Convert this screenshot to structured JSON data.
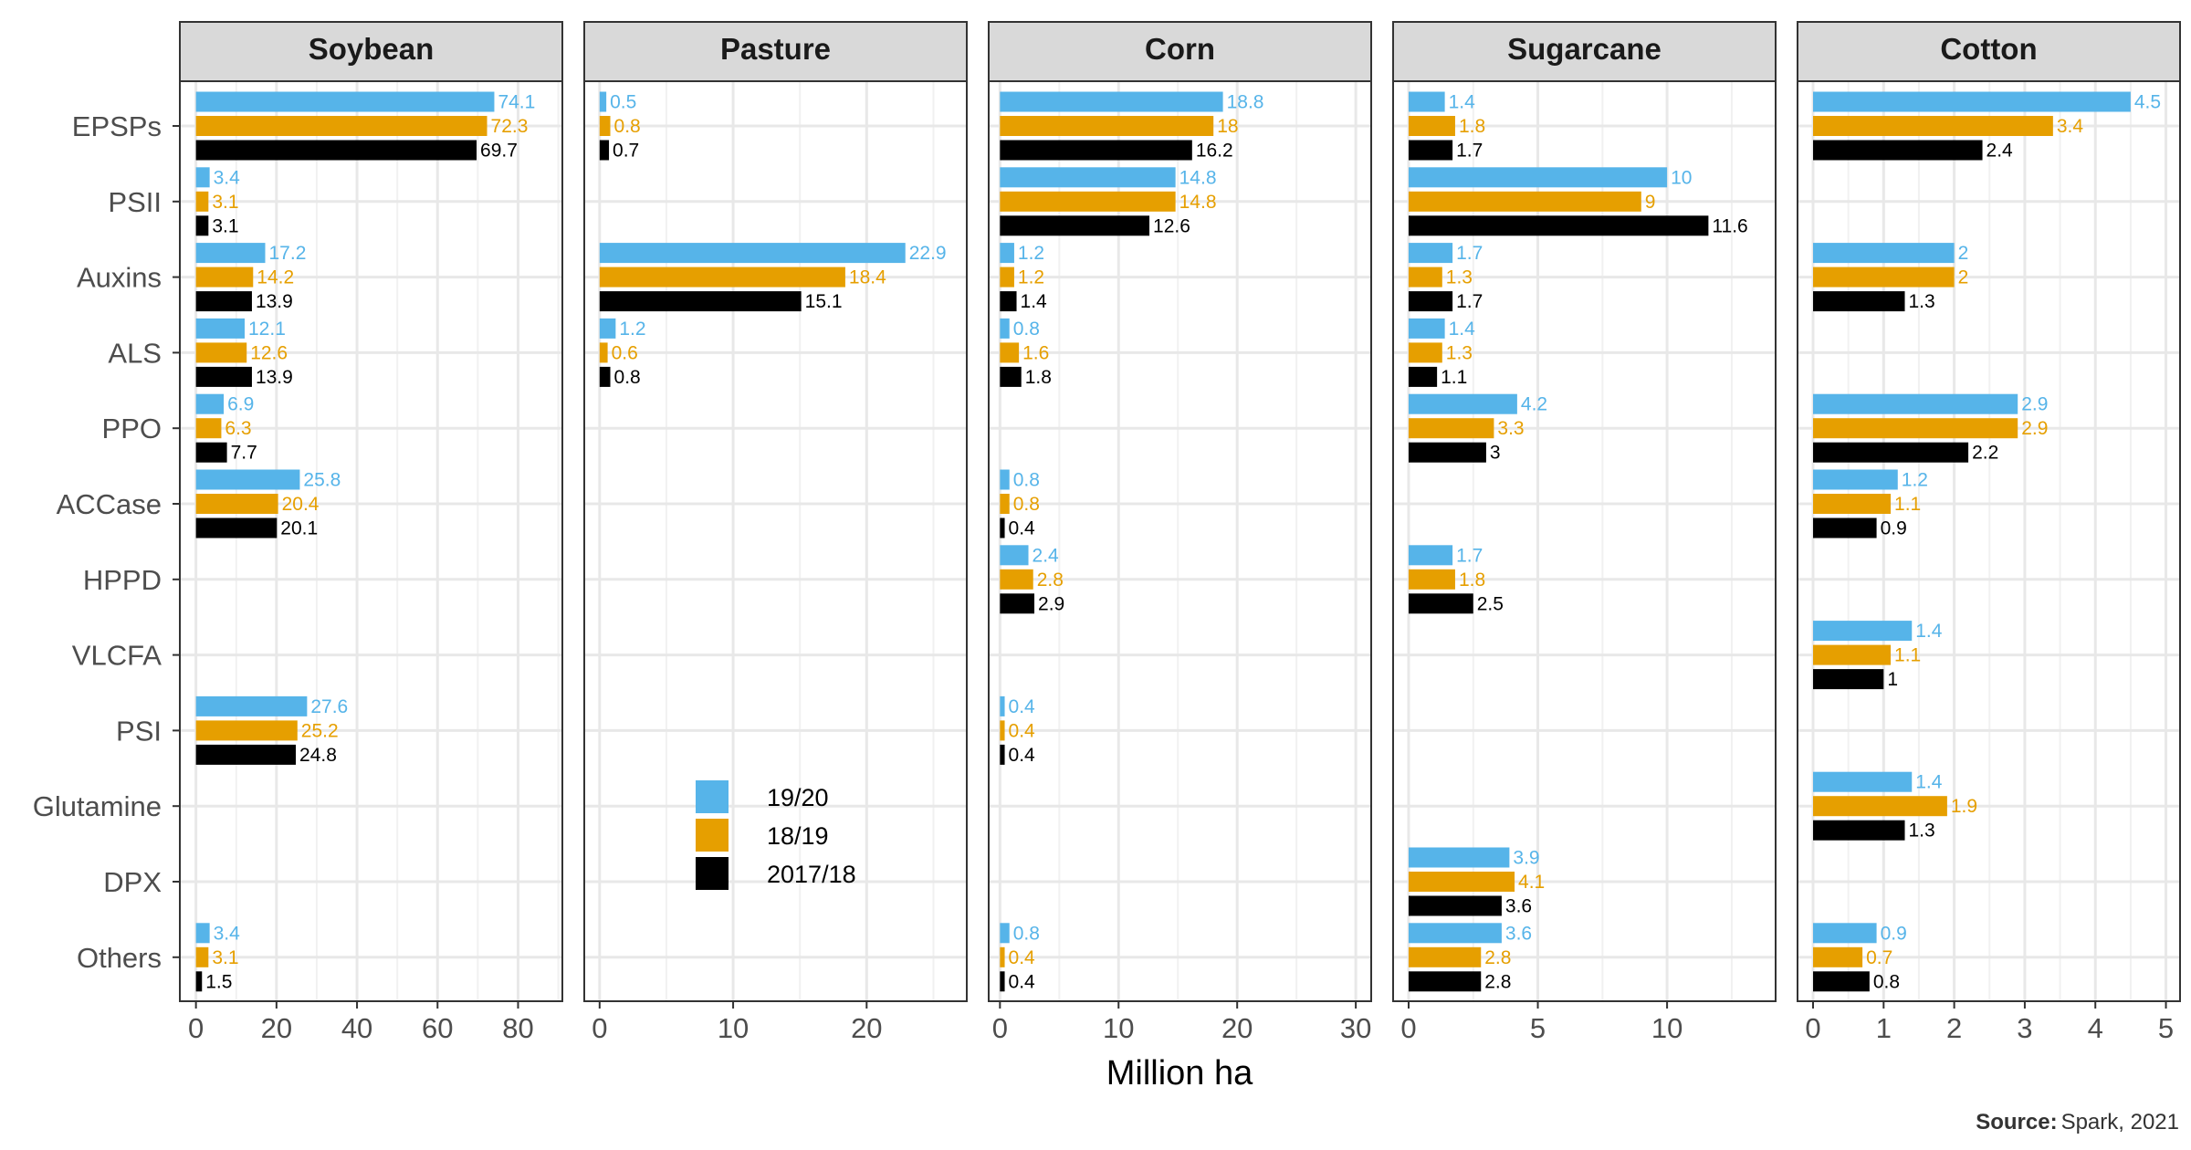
{
  "chart_data": {
    "type": "bar",
    "orientation": "horizontal",
    "xlabel": "Million ha",
    "ylabel": "",
    "categories": [
      "EPSPs",
      "PSII",
      "Auxins",
      "ALS",
      "PPO",
      "ACCase",
      "HPPD",
      "VLCFA",
      "PSI",
      "Glutamine",
      "DPX",
      "Others"
    ],
    "series_names": [
      "19/20",
      "18/19",
      "2017/18"
    ],
    "colors": {
      "19/20": "#56B4E9",
      "18/19": "#E69F00",
      "2017/18": "#000000"
    },
    "grid": true,
    "legend_position": "inside Pasture panel, lower middle",
    "source": {
      "prefix": "Source:",
      "text": "Spark, 2021"
    },
    "panels": [
      {
        "name": "Soybean",
        "xlim": [
          -4,
          91
        ],
        "ticks": [
          0,
          20,
          40,
          60,
          80
        ],
        "tick_labels": [
          "0",
          "20",
          "40",
          "60",
          "80"
        ],
        "series": [
          {
            "name": "19/20",
            "values": [
              74.1,
              3.4,
              17.2,
              12.1,
              6.9,
              25.8,
              null,
              null,
              27.6,
              null,
              null,
              3.4
            ]
          },
          {
            "name": "18/19",
            "values": [
              72.3,
              3.1,
              14.2,
              12.6,
              6.3,
              20.4,
              null,
              null,
              25.2,
              null,
              null,
              3.1
            ]
          },
          {
            "name": "2017/18",
            "values": [
              69.7,
              3.1,
              13.9,
              13.9,
              7.7,
              20.1,
              null,
              null,
              24.8,
              null,
              null,
              1.5
            ]
          }
        ],
        "labels": [
          [
            "74.1",
            "3.4",
            "17.2",
            "12.1",
            "6.9",
            "25.8",
            null,
            null,
            "27.6",
            null,
            null,
            "3.4"
          ],
          [
            "72.3",
            "3.1",
            "14.2",
            "12.6",
            "6.3",
            "20.4",
            null,
            null,
            "25.2",
            null,
            null,
            "3.1"
          ],
          [
            "69.7",
            "3.1",
            "13.9",
            "13.9",
            "7.7",
            "20.1",
            null,
            null,
            "24.8",
            null,
            null,
            "1.5"
          ]
        ]
      },
      {
        "name": "Pasture",
        "xlim": [
          -1.15,
          27.5
        ],
        "ticks": [
          0,
          10,
          20
        ],
        "tick_labels": [
          "0",
          "10",
          "20"
        ],
        "series": [
          {
            "name": "19/20",
            "values": [
              0.5,
              null,
              22.9,
              1.2,
              null,
              null,
              null,
              null,
              null,
              null,
              null,
              null
            ]
          },
          {
            "name": "18/19",
            "values": [
              0.8,
              null,
              18.4,
              0.6,
              null,
              null,
              null,
              null,
              null,
              null,
              null,
              null
            ]
          },
          {
            "name": "2017/18",
            "values": [
              0.7,
              null,
              15.1,
              0.8,
              null,
              null,
              null,
              null,
              null,
              null,
              null,
              null
            ]
          }
        ],
        "labels": [
          [
            "0.5",
            null,
            "22.9",
            "1.2",
            null,
            null,
            null,
            null,
            null,
            null,
            null,
            null
          ],
          [
            "0.8",
            null,
            "18.4",
            "0.6",
            null,
            null,
            null,
            null,
            null,
            null,
            null,
            null
          ],
          [
            "0.7",
            null,
            "15.1",
            "0.8",
            null,
            null,
            null,
            null,
            null,
            null,
            null,
            null
          ]
        ]
      },
      {
        "name": "Corn",
        "xlim": [
          -0.95,
          31.3
        ],
        "ticks": [
          0,
          10,
          20,
          30
        ],
        "tick_labels": [
          "0",
          "10",
          "20",
          "30"
        ],
        "series": [
          {
            "name": "19/20",
            "values": [
              18.8,
              14.8,
              1.2,
              0.8,
              null,
              0.8,
              2.4,
              null,
              0.4,
              null,
              null,
              0.8
            ]
          },
          {
            "name": "18/19",
            "values": [
              18,
              14.8,
              1.2,
              1.6,
              null,
              0.8,
              2.8,
              null,
              0.4,
              null,
              null,
              0.4
            ]
          },
          {
            "name": "2017/18",
            "values": [
              16.2,
              12.6,
              1.4,
              1.8,
              null,
              0.4,
              2.9,
              null,
              0.4,
              null,
              null,
              0.4
            ]
          }
        ],
        "labels": [
          [
            "18.8",
            "14.8",
            "1.2",
            "0.8",
            null,
            "0.8",
            "2.4",
            null,
            "0.4",
            null,
            null,
            "0.8"
          ],
          [
            "18",
            "14.8",
            "1.2",
            "1.6",
            null,
            "0.8",
            "2.8",
            null,
            "0.4",
            null,
            null,
            "0.4"
          ],
          [
            "16.2",
            "12.6",
            "1.4",
            "1.8",
            null,
            "0.4",
            "2.9",
            null,
            "0.4",
            null,
            null,
            "0.4"
          ]
        ]
      },
      {
        "name": "Sugarcane",
        "xlim": [
          -0.6,
          14.2
        ],
        "ticks": [
          0,
          5,
          10
        ],
        "tick_labels": [
          "0",
          "5",
          "10"
        ],
        "series": [
          {
            "name": "19/20",
            "values": [
              1.4,
              10,
              1.7,
              1.4,
              4.2,
              null,
              1.7,
              null,
              null,
              null,
              3.9,
              3.6
            ]
          },
          {
            "name": "18/19",
            "values": [
              1.8,
              9,
              1.3,
              1.3,
              3.3,
              null,
              1.8,
              null,
              null,
              null,
              4.1,
              2.8
            ]
          },
          {
            "name": "2017/18",
            "values": [
              1.7,
              11.6,
              1.7,
              1.1,
              3,
              null,
              2.5,
              null,
              null,
              null,
              3.6,
              2.8
            ]
          }
        ],
        "labels": [
          [
            "1.4",
            "10",
            "1.7",
            "1.4",
            "4.2",
            null,
            "1.7",
            null,
            null,
            null,
            "3.9",
            "3.6"
          ],
          [
            "1.8",
            "9",
            "1.3",
            "1.3",
            "3.3",
            null,
            "1.8",
            null,
            null,
            null,
            "4.1",
            "2.8"
          ],
          [
            "1.7",
            "11.6",
            "1.7",
            "1.1",
            "3",
            null,
            "2.5",
            null,
            null,
            null,
            "3.6",
            "2.8"
          ]
        ]
      },
      {
        "name": "Cotton",
        "xlim": [
          -0.22,
          5.2
        ],
        "ticks": [
          0,
          1,
          2,
          3,
          4,
          5
        ],
        "tick_labels": [
          "0",
          "1",
          "2",
          "3",
          "4",
          "5"
        ],
        "series": [
          {
            "name": "19/20",
            "values": [
              4.5,
              null,
              2,
              null,
              2.9,
              1.2,
              null,
              1.4,
              null,
              1.4,
              null,
              0.9
            ]
          },
          {
            "name": "18/19",
            "values": [
              3.4,
              null,
              2,
              null,
              2.9,
              1.1,
              null,
              1.1,
              null,
              1.9,
              null,
              0.7
            ]
          },
          {
            "name": "2017/18",
            "values": [
              2.4,
              null,
              1.3,
              null,
              2.2,
              0.9,
              null,
              1,
              null,
              1.3,
              null,
              0.8
            ]
          }
        ],
        "labels": [
          [
            "4.5",
            null,
            "2",
            null,
            "2.9",
            "1.2",
            null,
            "1.4",
            null,
            "1.4",
            null,
            "0.9"
          ],
          [
            "3.4",
            null,
            "2",
            null,
            "2.9",
            "1.1",
            null,
            "1.1",
            null,
            "1.9",
            null,
            "0.7"
          ],
          [
            "2.4",
            null,
            "1.3",
            null,
            "2.2",
            "0.9",
            null,
            "1",
            null,
            "1.3",
            null,
            "0.8"
          ]
        ]
      }
    ]
  }
}
